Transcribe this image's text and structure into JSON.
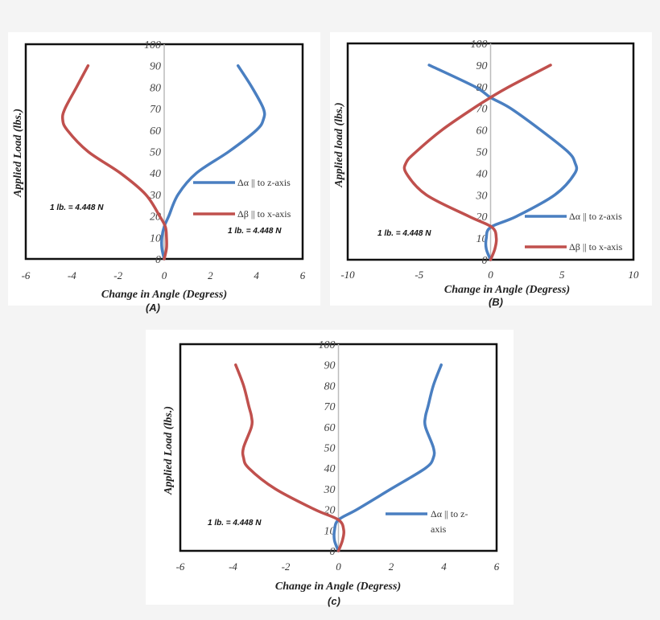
{
  "chart_data": [
    {
      "type": "line",
      "caption": "(A)",
      "xlabel": "Change in Angle (Degress)",
      "ylabel": "Applied Load (lbs.)",
      "xlim": [
        -6,
        6
      ],
      "xticks": [
        "-6",
        "-4",
        "-2",
        "0",
        "2",
        "4",
        "6"
      ],
      "ylim": [
        0,
        100
      ],
      "yticks": [
        "0",
        "10",
        "20",
        "30",
        "40",
        "50",
        "60",
        "70",
        "80",
        "90",
        "100"
      ],
      "grid": false,
      "annotations": [
        "1 lb. = 4.448 N",
        "1 lb. = 4.448 N"
      ],
      "legend": "right",
      "series": [
        {
          "name": "Δα || to z-axis",
          "color": "#4a7fc1",
          "y": [
            0,
            5,
            10,
            15,
            20,
            30,
            40,
            50,
            60,
            65,
            70,
            80,
            90
          ],
          "x": [
            0,
            -0.1,
            -0.1,
            0,
            0.2,
            0.6,
            1.4,
            2.8,
            4.0,
            4.3,
            4.3,
            3.8,
            3.2
          ]
        },
        {
          "name": "Δβ || to x-axis",
          "color": "#c0504d",
          "y": [
            0,
            5,
            10,
            15,
            20,
            30,
            40,
            50,
            60,
            65,
            70,
            80,
            90
          ],
          "x": [
            0,
            0.1,
            0.1,
            0.05,
            -0.2,
            -0.8,
            -1.9,
            -3.3,
            -4.2,
            -4.4,
            -4.3,
            -3.8,
            -3.3
          ]
        }
      ]
    },
    {
      "type": "line",
      "caption": "(B)",
      "xlabel": "Change in Angle (Degress)",
      "ylabel": "Applied load (lbs.)",
      "xlim": [
        -10,
        10
      ],
      "xticks": [
        "-10",
        "-5",
        "0",
        "5",
        "10"
      ],
      "ylim": [
        0,
        100
      ],
      "yticks": [
        "0",
        "10",
        "20",
        "30",
        "40",
        "50",
        "60",
        "70",
        "80",
        "90",
        "100"
      ],
      "grid": false,
      "annotations": [
        "1 lb. = 4.448 N"
      ],
      "legend": "bottom-right",
      "series": [
        {
          "name": "Δα || to z-axis",
          "color": "#4a7fc1",
          "y": [
            0,
            5,
            10,
            15,
            20,
            30,
            40,
            45,
            50,
            60,
            70,
            75,
            80,
            90
          ],
          "x": [
            0,
            -0.3,
            -0.3,
            0,
            1.8,
            4.5,
            5.9,
            5.9,
            5.4,
            3.5,
            1.4,
            0,
            -1.1,
            -4.3
          ]
        },
        {
          "name": "Δβ || to x-axis",
          "color": "#c0504d",
          "y": [
            0,
            5,
            10,
            15,
            20,
            30,
            40,
            45,
            50,
            60,
            70,
            75,
            80,
            90
          ],
          "x": [
            0,
            0.3,
            0.4,
            0.1,
            -1.5,
            -4.5,
            -5.9,
            -5.9,
            -5.2,
            -3.4,
            -1.2,
            0,
            1.3,
            4.2
          ]
        }
      ]
    },
    {
      "type": "line",
      "caption": "(c)",
      "xlabel": "Change in Angle (Degress)",
      "ylabel": "Applied Load (lbs.)",
      "xlim": [
        -6,
        6
      ],
      "xticks": [
        "-6",
        "-4",
        "-2",
        "0",
        "2",
        "4",
        "6"
      ],
      "ylim": [
        0,
        100
      ],
      "yticks": [
        "0",
        "10",
        "20",
        "30",
        "40",
        "50",
        "60",
        "70",
        "80",
        "90",
        "100"
      ],
      "grid": false,
      "annotations": [
        "1 lb. = 4.448 N"
      ],
      "legend": "right",
      "legend_lines": [
        "Δα || to z-",
        "axis"
      ],
      "series": [
        {
          "name": "Δα || to z-axis",
          "color": "#4a7fc1",
          "y": [
            0,
            5,
            10,
            15,
            20,
            30,
            40,
            45,
            50,
            60,
            65,
            70,
            80,
            90
          ],
          "x": [
            0,
            -0.15,
            -0.15,
            0,
            0.7,
            2.0,
            3.3,
            3.6,
            3.6,
            3.3,
            3.3,
            3.4,
            3.6,
            3.9
          ]
        },
        {
          "color": "#c0504d",
          "y": [
            0,
            5,
            10,
            15,
            20,
            30,
            40,
            45,
            50,
            60,
            65,
            70,
            80,
            90
          ],
          "x": [
            0,
            0.15,
            0.2,
            0,
            -0.9,
            -2.4,
            -3.4,
            -3.6,
            -3.6,
            -3.3,
            -3.3,
            -3.4,
            -3.6,
            -3.9
          ]
        }
      ]
    }
  ]
}
